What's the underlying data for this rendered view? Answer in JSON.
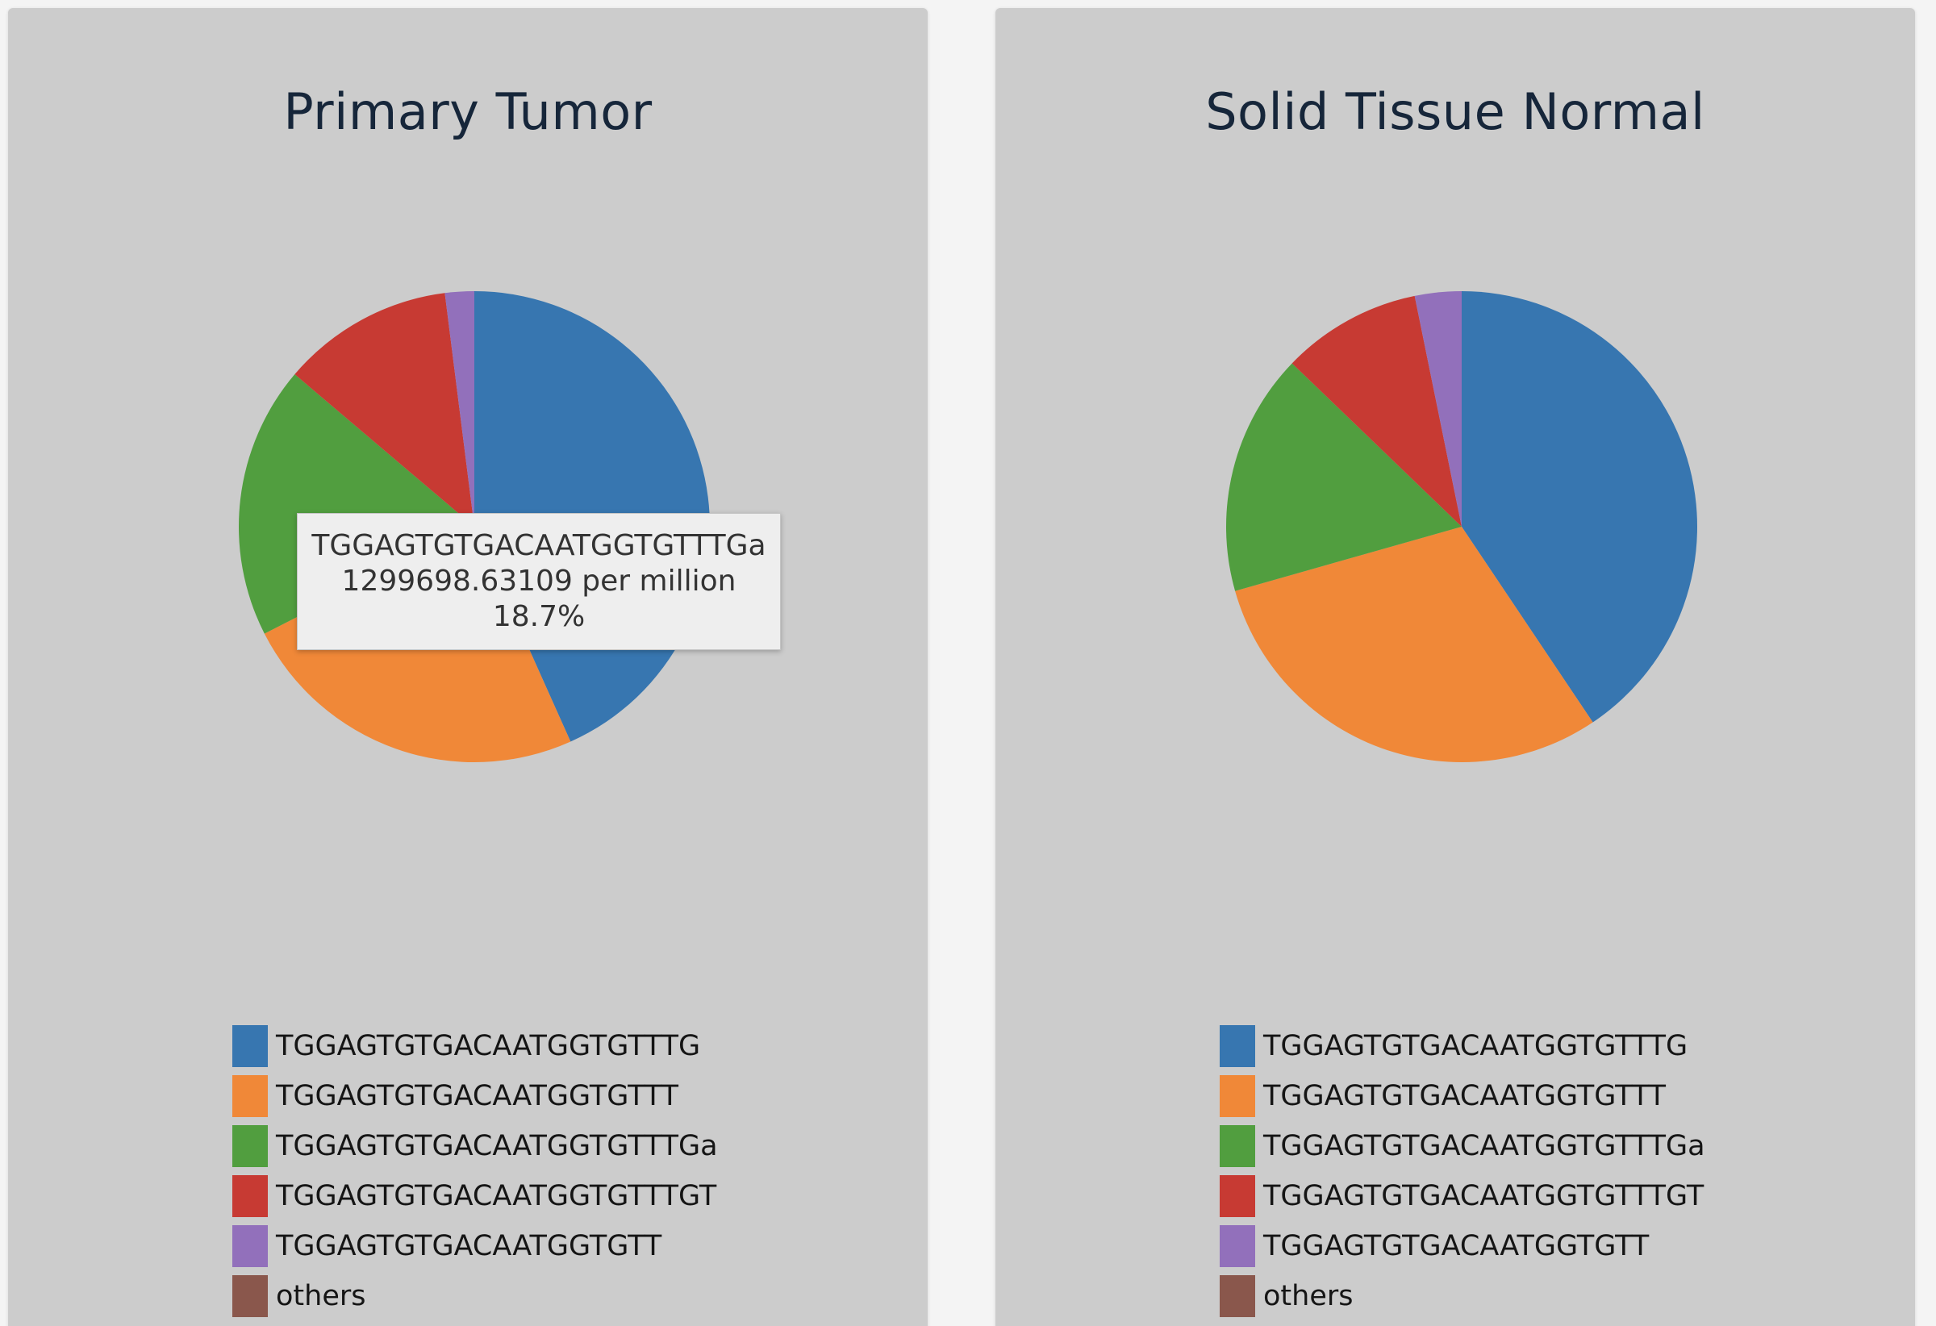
{
  "charts": [
    {
      "title": "Primary Tumor",
      "legend": [
        {
          "label": "TGGAGTGTGACAATGGTGTTTG",
          "color": "#3776b0"
        },
        {
          "label": "TGGAGTGTGACAATGGTGTTT",
          "color": "#f08838"
        },
        {
          "label": "TGGAGTGTGACAATGGTGTTTGa",
          "color": "#519e3f"
        },
        {
          "label": "TGGAGTGTGACAATGGTGTTTGT",
          "color": "#c73a33"
        },
        {
          "label": "TGGAGTGTGACAATGGTGTT",
          "color": "#9270bb"
        },
        {
          "label": "others",
          "color": "#8a574c"
        }
      ],
      "tooltip": {
        "name": "TGGAGTGTGACAATGGTGTTTGa",
        "value": "1299698.63109 per million",
        "percent": "18.7%"
      }
    },
    {
      "title": "Solid Tissue Normal",
      "legend": [
        {
          "label": "TGGAGTGTGACAATGGTGTTTG",
          "color": "#3776b0"
        },
        {
          "label": "TGGAGTGTGACAATGGTGTTT",
          "color": "#f08838"
        },
        {
          "label": "TGGAGTGTGACAATGGTGTTTGa",
          "color": "#519e3f"
        },
        {
          "label": "TGGAGTGTGACAATGGTGTTTGT",
          "color": "#c73a33"
        },
        {
          "label": "TGGAGTGTGACAATGGTGTT",
          "color": "#9270bb"
        },
        {
          "label": "others",
          "color": "#8a574c"
        }
      ]
    }
  ],
  "chart_data": [
    {
      "type": "pie",
      "title": "Primary Tumor",
      "categories": [
        "TGGAGTGTGACAATGGTGTTTG",
        "TGGAGTGTGACAATGGTGTTT",
        "TGGAGTGTGACAATGGTGTTTGa",
        "TGGAGTGTGACAATGGTGTTTGT",
        "TGGAGTGTGACAATGGTGTT",
        "others"
      ],
      "values": [
        43.3,
        24.2,
        18.7,
        11.8,
        2.0,
        0.0
      ],
      "colors": [
        "#3776b0",
        "#f08838",
        "#519e3f",
        "#c73a33",
        "#9270bb",
        "#8a574c"
      ],
      "unit": "percent",
      "legend": "bottom"
    },
    {
      "type": "pie",
      "title": "Solid Tissue Normal",
      "categories": [
        "TGGAGTGTGACAATGGTGTTTG",
        "TGGAGTGTGACAATGGTGTTT",
        "TGGAGTGTGACAATGGTGTTTGa",
        "TGGAGTGTGACAATGGTGTTTGT",
        "TGGAGTGTGACAATGGTGTT",
        "others"
      ],
      "values": [
        40.6,
        30.0,
        16.6,
        9.6,
        3.2,
        0.0
      ],
      "colors": [
        "#3776b0",
        "#f08838",
        "#519e3f",
        "#c73a33",
        "#9270bb",
        "#8a574c"
      ],
      "unit": "percent",
      "legend": "bottom"
    }
  ]
}
